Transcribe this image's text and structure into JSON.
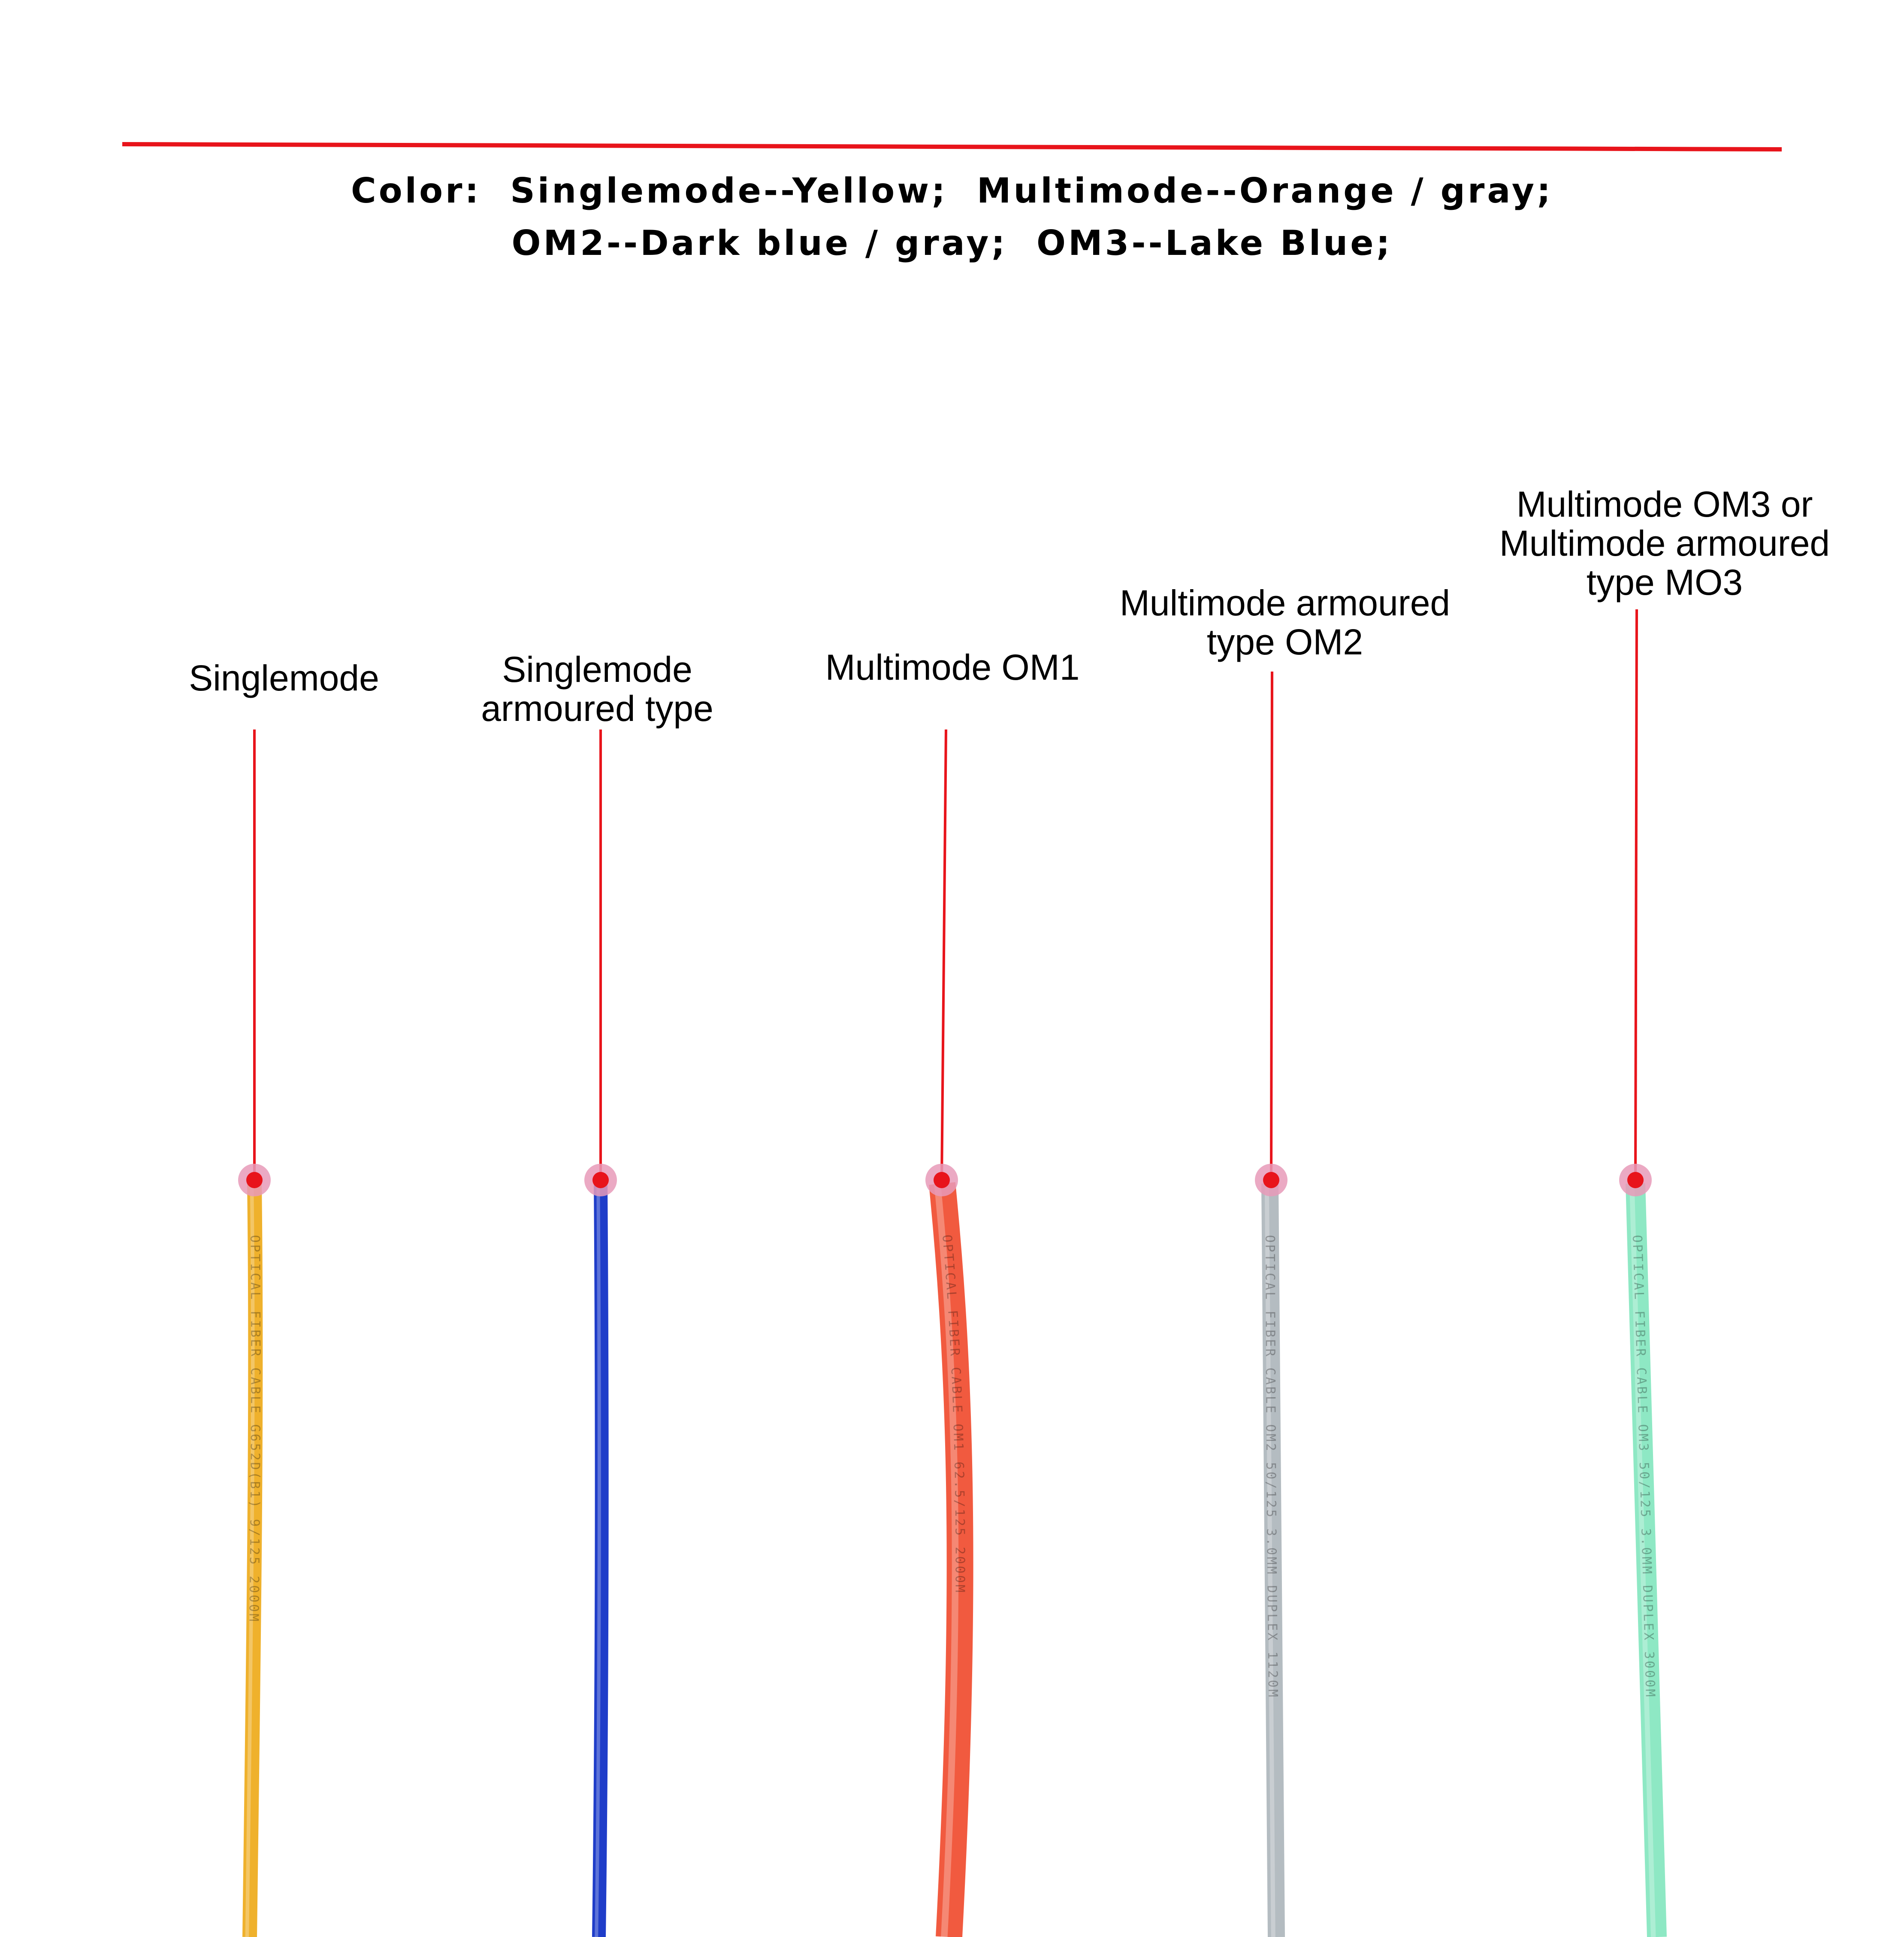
{
  "legend": {
    "line1": "Color:  Singlemode--Yellow;  Multimode--Orange / gray;",
    "line2": "OM2--Dark blue / gray;  OM3--Lake Blue;"
  },
  "accent_color": "#e8141b",
  "marker_halo_color": "#e79ab8",
  "cables": [
    {
      "label_lines": [
        "Singlemode"
      ],
      "color": "#efb12c",
      "print_text": "OPTICAL FIBER CABLE G652D(B1) 9/125 2000M"
    },
    {
      "label_lines": [
        "Singlemode",
        "armoured type"
      ],
      "color": "#1f3dc9",
      "print_text": ""
    },
    {
      "label_lines": [
        "Multimode OM1"
      ],
      "color": "#f15a3f",
      "print_text": "OPTICAL FIBER CABLE OM1 62.5/125 2000M"
    },
    {
      "label_lines": [
        "Multimode armoured",
        "type OM2"
      ],
      "color": "#b4bcc1",
      "print_text": "OPTICAL FIBER CABLE OM2 50/125 3.0MM DUPLEX 1120M"
    },
    {
      "label_lines": [
        "Multimode OM3 or",
        "Multimode armoured",
        "type MO3"
      ],
      "color": "#8ee8c4",
      "print_text": "OPTICAL FIBER CABLE OM3 50/125 3.0MM DUPLEX 3000M"
    }
  ]
}
